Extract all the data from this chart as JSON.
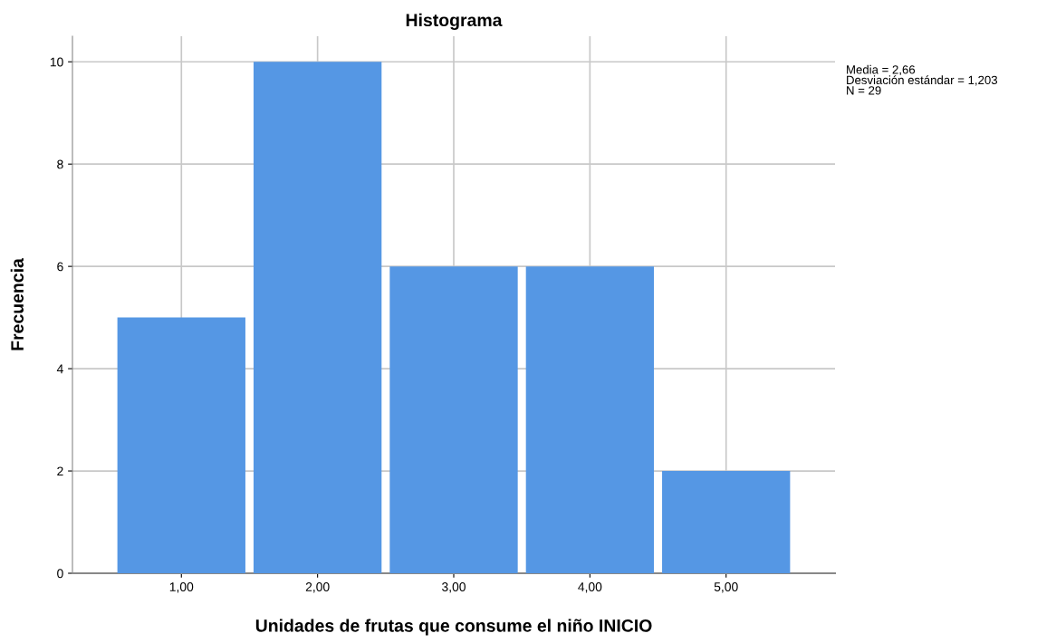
{
  "chart_data": {
    "type": "histogram",
    "title": "Histograma",
    "xlabel": "Unidades de frutas que consume el niño INICIO",
    "ylabel": "Frecuencia",
    "bins": [
      0.5,
      1.5,
      2.5,
      3.5,
      4.5,
      5.5
    ],
    "values": [
      5,
      10,
      6,
      6,
      2
    ],
    "color": "#5597e4",
    "xlim": [
      0.2,
      5.8
    ],
    "ylim": [
      0,
      10.5
    ],
    "xticks": [
      {
        "value": 1,
        "label": "1,00"
      },
      {
        "value": 2,
        "label": "2,00"
      },
      {
        "value": 3,
        "label": "3,00"
      },
      {
        "value": 4,
        "label": "4,00"
      },
      {
        "value": 5,
        "label": "5,00"
      }
    ],
    "yticks": [
      0,
      2,
      4,
      6,
      8,
      10
    ],
    "grid": true,
    "annotations": [
      "Media = 2,66",
      "Desviación estándar = 1,203",
      "N = 29"
    ]
  }
}
